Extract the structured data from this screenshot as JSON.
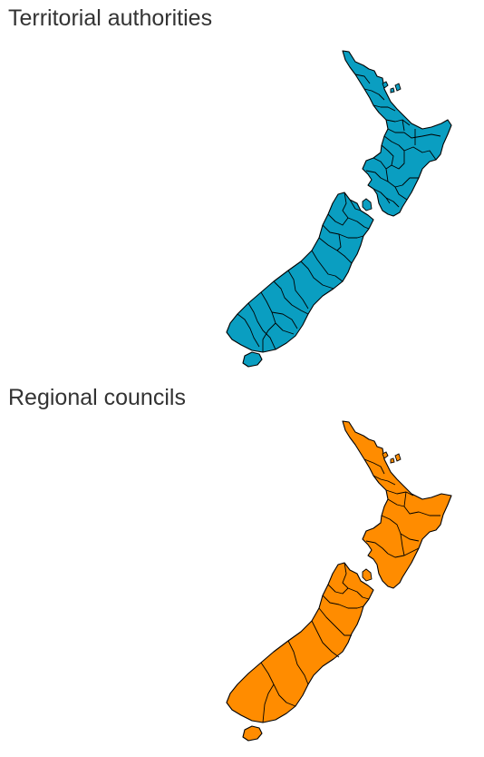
{
  "maps": [
    {
      "id": "territorial-authorities",
      "title": "Territorial authorities",
      "fill_color": "#0a9ec1"
    },
    {
      "id": "regional-councils",
      "title": "Regional councils",
      "fill_color": "#ff8c00"
    }
  ],
  "colors": {
    "border": "#000000",
    "title_text": "#333333",
    "background": "#ffffff"
  }
}
